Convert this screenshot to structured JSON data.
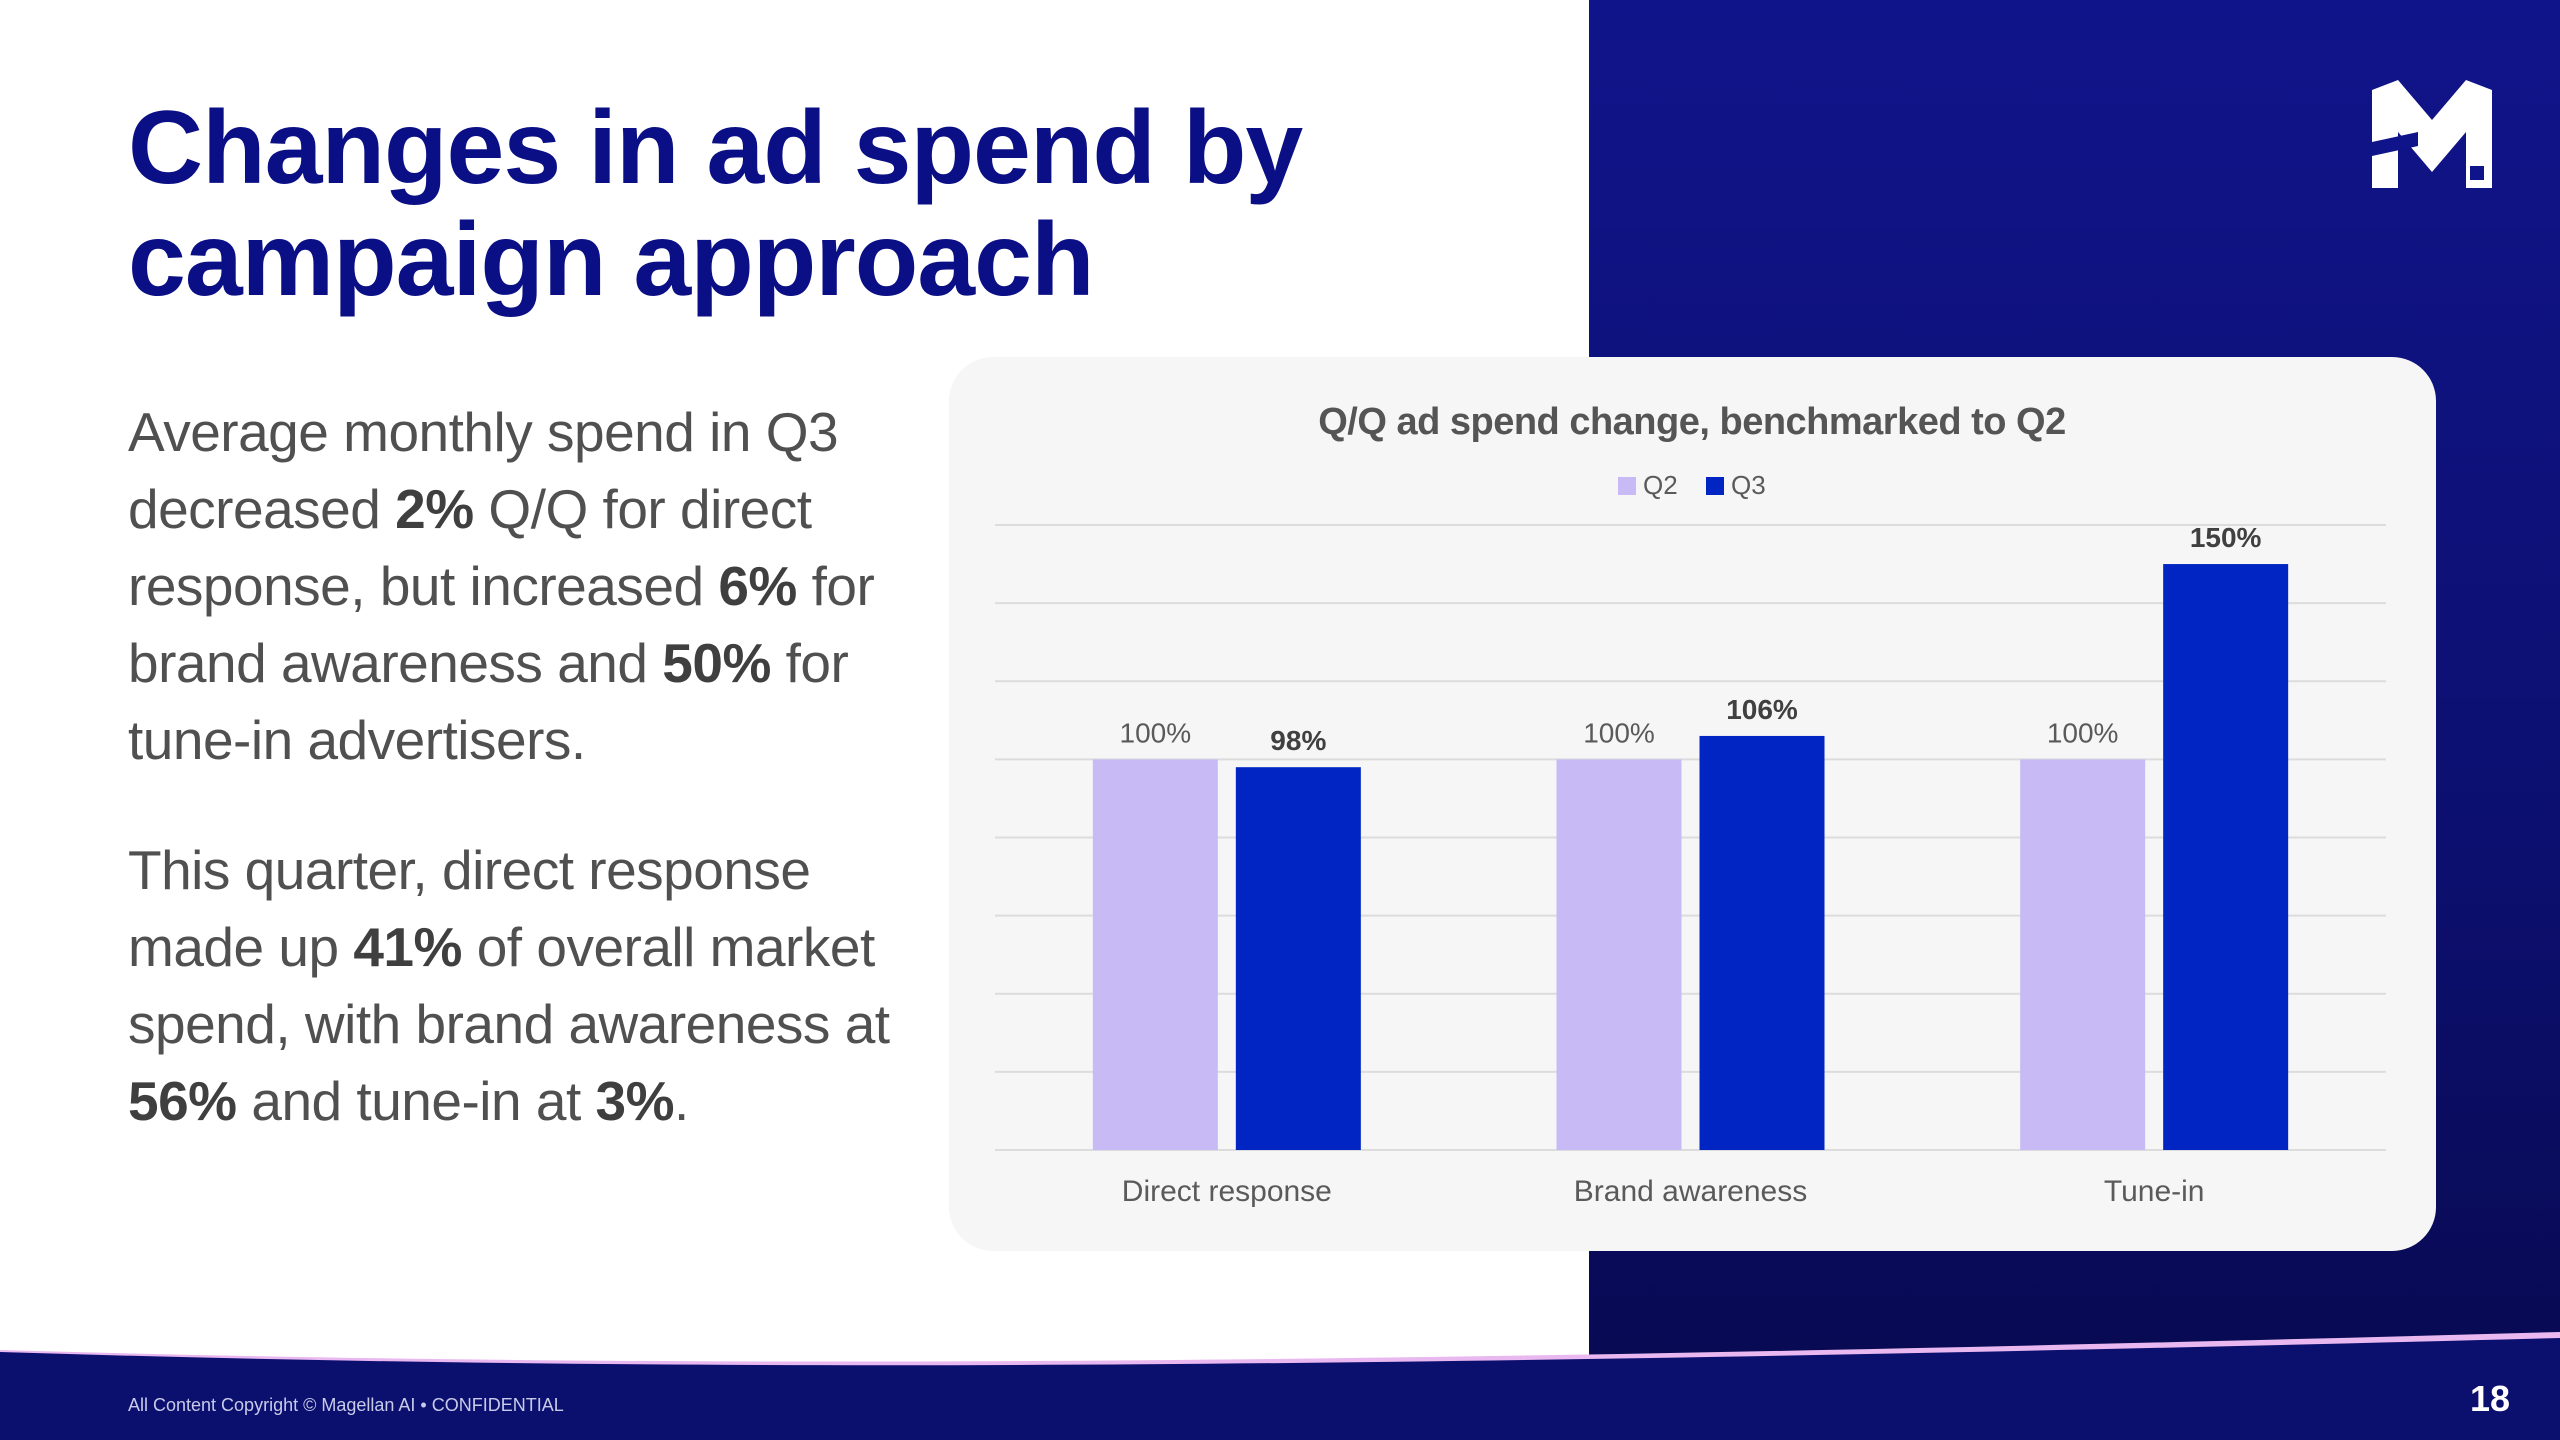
{
  "slide": {
    "title": "Changes in ad spend by campaign approach",
    "page_number": "18",
    "copyright": "All Content Copyright © Magellan AI • CONFIDENTIAL",
    "logo_text": "M"
  },
  "body": {
    "p1": [
      {
        "text": "Average monthly spend in Q3 decreased ",
        "bold": false
      },
      {
        "text": "2%",
        "bold": true
      },
      {
        "text": " Q/Q for direct response, but increased ",
        "bold": false
      },
      {
        "text": "6%",
        "bold": true
      },
      {
        "text": " for brand awareness and ",
        "bold": false
      },
      {
        "text": "50%",
        "bold": true
      },
      {
        "text": " for tune-in advertisers.",
        "bold": false
      }
    ],
    "p2": [
      {
        "text": "This quarter, direct response made up ",
        "bold": false
      },
      {
        "text": "41%",
        "bold": true
      },
      {
        "text": " of overall market spend, with brand awareness at ",
        "bold": false
      },
      {
        "text": "56%",
        "bold": true
      },
      {
        "text": " and tune-in at ",
        "bold": false
      },
      {
        "text": "3%",
        "bold": true
      },
      {
        "text": ".",
        "bold": false
      }
    ]
  },
  "colors": {
    "navy": "#0b0f85",
    "q2": "#c8baf5",
    "q3": "#0025c2",
    "accent_wave": "#e9b8f0"
  },
  "chart_data": {
    "type": "bar",
    "title": "Q/Q ad spend change, benchmarked to Q2",
    "categories": [
      "Direct response",
      "Brand awareness",
      "Tune-in"
    ],
    "series": [
      {
        "name": "Q2",
        "values": [
          100,
          100,
          100
        ],
        "labels": [
          "100%",
          "100%",
          "100%"
        ],
        "color": "#c8baf5"
      },
      {
        "name": "Q3",
        "values": [
          98,
          106,
          150
        ],
        "labels": [
          "98%",
          "106%",
          "150%"
        ],
        "color": "#0025c2"
      }
    ],
    "ylim": [
      0,
      160
    ],
    "gridlines": true,
    "legend_position": "top",
    "xlabel": "",
    "ylabel": ""
  }
}
